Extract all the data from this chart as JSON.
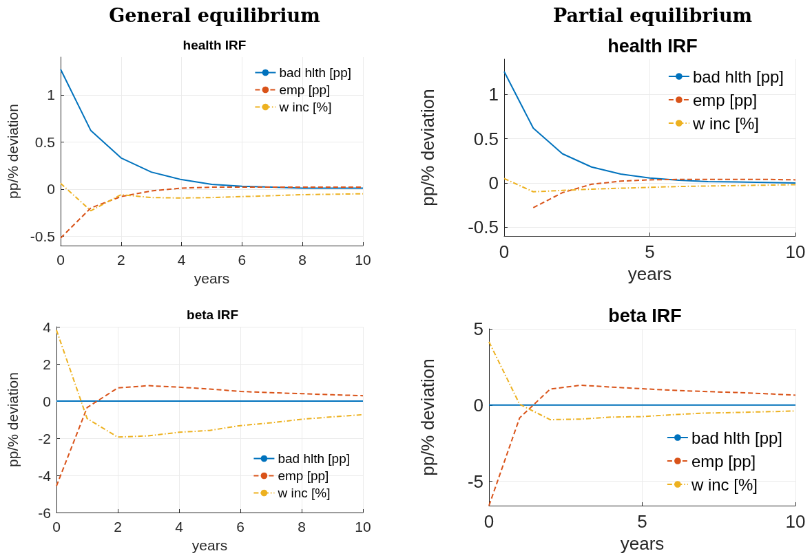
{
  "chart_data": [
    {
      "type": "line",
      "title": "General equilibrium",
      "subtitle": "health IRF",
      "xlabel": "years",
      "ylabel": "pp/% deviation",
      "x": [
        0,
        1,
        2,
        3,
        4,
        5,
        6,
        7,
        8,
        9,
        10
      ],
      "xlim": [
        0,
        10
      ],
      "xticks": [
        0,
        2,
        4,
        6,
        8,
        10
      ],
      "ylim": [
        -0.6,
        1.4
      ],
      "yticks": [
        -0.5,
        0,
        0.5,
        1
      ],
      "grid": true,
      "legend": "top right",
      "series": [
        {
          "name": "bad hlth [pp]",
          "color": "#0072bd",
          "line_style": "solid",
          "values": [
            1.27,
            0.62,
            0.33,
            0.18,
            0.1,
            0.05,
            0.03,
            0.02,
            0.01,
            0.01,
            0.01
          ]
        },
        {
          "name": "emp [pp]",
          "color": "#d95319",
          "line_style": "dashed",
          "values": [
            -0.52,
            -0.2,
            -0.08,
            -0.02,
            0.01,
            0.02,
            0.02,
            0.02,
            0.02,
            0.02,
            0.02
          ]
        },
        {
          "name": "w inc [%]",
          "color": "#edb120",
          "line_style": "dashdot",
          "values": [
            0.06,
            -0.23,
            -0.06,
            -0.09,
            -0.095,
            -0.09,
            -0.08,
            -0.07,
            -0.06,
            -0.055,
            -0.05
          ]
        }
      ]
    },
    {
      "type": "line",
      "title": "Partial equilibrium",
      "subtitle": "health IRF",
      "xlabel": "years",
      "ylabel": "pp/% deviation",
      "x": [
        0,
        1,
        2,
        3,
        4,
        5,
        6,
        7,
        8,
        9,
        10
      ],
      "xlim": [
        0,
        10
      ],
      "xticks": [
        0,
        5,
        10
      ],
      "ylim": [
        -0.6,
        1.4
      ],
      "yticks": [
        -0.5,
        0,
        0.5,
        1
      ],
      "grid": true,
      "legend": "top right",
      "series": [
        {
          "name": "bad hlth [pp]",
          "color": "#0072bd",
          "line_style": "solid",
          "values": [
            1.26,
            0.62,
            0.33,
            0.18,
            0.1,
            0.055,
            0.03,
            0.015,
            0.01,
            0.005,
            0
          ]
        },
        {
          "name": "emp [pp]",
          "color": "#d95319",
          "line_style": "dashed",
          "values": [
            null,
            -0.28,
            -0.11,
            -0.015,
            0.02,
            0.035,
            0.04,
            0.04,
            0.04,
            0.04,
            0.035
          ]
        },
        {
          "name": "w inc [%]",
          "color": "#edb120",
          "line_style": "dashdot",
          "values": [
            0.05,
            -0.1,
            -0.085,
            -0.07,
            -0.06,
            -0.05,
            -0.04,
            -0.035,
            -0.03,
            -0.025,
            -0.02
          ]
        }
      ]
    },
    {
      "type": "line",
      "title": "beta IRF",
      "xlabel": "years",
      "ylabel": "pp/% deviation",
      "x": [
        0,
        1,
        2,
        3,
        4,
        5,
        6,
        7,
        8,
        9,
        10
      ],
      "xlim": [
        0,
        10
      ],
      "xticks": [
        0,
        2,
        4,
        6,
        8,
        10
      ],
      "ylim": [
        -6,
        4
      ],
      "yticks": [
        -6,
        -4,
        -2,
        0,
        2,
        4
      ],
      "grid": true,
      "legend": "bottom right",
      "series": [
        {
          "name": "bad hlth [pp]",
          "color": "#0072bd",
          "line_style": "solid",
          "values": [
            0,
            0,
            0,
            0,
            0,
            0,
            0,
            0,
            0,
            0,
            0
          ]
        },
        {
          "name": "emp [pp]",
          "color": "#d95319",
          "line_style": "dashed",
          "values": [
            -4.57,
            -0.35,
            0.71,
            0.83,
            0.75,
            0.65,
            0.52,
            0.45,
            0.4,
            0.34,
            0.29
          ]
        },
        {
          "name": "w inc [%]",
          "color": "#edb120",
          "line_style": "dashdot",
          "values": [
            3.82,
            -0.94,
            -1.94,
            -1.87,
            -1.68,
            -1.58,
            -1.32,
            -1.17,
            -0.98,
            -0.85,
            -0.73
          ]
        }
      ]
    },
    {
      "type": "line",
      "title": "beta IRF",
      "xlabel": "years",
      "ylabel": "pp/% deviation",
      "x": [
        0,
        1,
        2,
        3,
        4,
        5,
        6,
        7,
        8,
        9,
        10
      ],
      "xlim": [
        0,
        10
      ],
      "xticks": [
        0,
        5,
        10
      ],
      "ylim": [
        -6.6,
        5
      ],
      "yticks": [
        -5,
        0,
        5
      ],
      "grid": true,
      "legend": "bottom right",
      "series": [
        {
          "name": "bad hlth [pp]",
          "color": "#0072bd",
          "line_style": "solid",
          "values": [
            0,
            0,
            0,
            0,
            0,
            0,
            0,
            0,
            0,
            0,
            0
          ]
        },
        {
          "name": "emp [pp]",
          "color": "#d95319",
          "line_style": "dashed",
          "values": [
            -6.6,
            -0.84,
            1.05,
            1.3,
            1.18,
            1.07,
            0.97,
            0.89,
            0.83,
            0.75,
            0.65
          ]
        },
        {
          "name": "w inc [%]",
          "color": "#edb120",
          "line_style": "dashdot",
          "values": [
            4.15,
            0.05,
            -0.96,
            -0.92,
            -0.79,
            -0.76,
            -0.63,
            -0.53,
            -0.49,
            -0.44,
            -0.39
          ]
        }
      ]
    }
  ]
}
